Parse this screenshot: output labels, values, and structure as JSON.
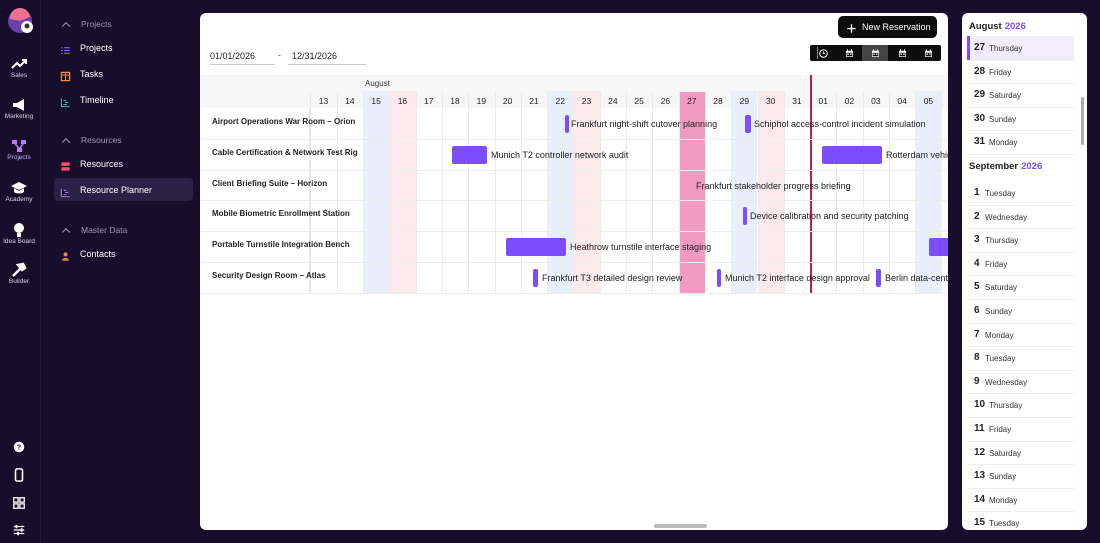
{
  "nav_rail": {
    "items": [
      "Sales",
      "Marketing",
      "Projects",
      "Academy",
      "Idea Board",
      "Builder"
    ]
  },
  "sidebar": {
    "sections": [
      {
        "title": "Projects",
        "items": [
          "Projects",
          "Tasks",
          "Timeline"
        ]
      },
      {
        "title": "Resources",
        "items": [
          "Resources",
          "Resource Planner"
        ]
      },
      {
        "title": "Master Data",
        "items": [
          "Contacts"
        ]
      }
    ]
  },
  "toolbar": {
    "new_reservation": "New Reservation",
    "date_from": "01/01/2026",
    "date_separator": "-",
    "date_to": "12/31/2026"
  },
  "planner": {
    "month": "August",
    "days": [
      "13",
      "14",
      "15",
      "16",
      "17",
      "18",
      "19",
      "20",
      "21",
      "22",
      "23",
      "24",
      "25",
      "26",
      "27",
      "28",
      "29",
      "30",
      "31",
      "01",
      "02",
      "03",
      "04",
      "05"
    ],
    "rows": [
      {
        "name": "Airport Operations War Room – Orion",
        "events": [
          {
            "label": "Frankfurt night-shift cutover planning"
          },
          {
            "label": "Schiphol access-control incident simulation"
          }
        ]
      },
      {
        "name": "Cable Certification & Network Test Rig",
        "events": [
          {
            "label": "Munich T2 controller network audit"
          },
          {
            "label": "Rotterdam vehic"
          }
        ]
      },
      {
        "name": "Client Briefing Suite – Horizon",
        "events": [
          {
            "label": "Frankfurt stakeholder progress briefing"
          }
        ]
      },
      {
        "name": "Mobile Biometric Enrollment Station",
        "events": [
          {
            "label": "Device calibration and security patching"
          }
        ]
      },
      {
        "name": "Portable Turnstile Integration Bench",
        "events": [
          {
            "label": "Heathrow turnstile interface staging"
          }
        ]
      },
      {
        "name": "Security Design Room – Atlas",
        "events": [
          {
            "label": "Frankfurt T3 detailed design review"
          },
          {
            "label": "Munich T2 interface design approval"
          },
          {
            "label": "Berlin data-cent"
          }
        ]
      }
    ]
  },
  "calendar": {
    "months": [
      {
        "name": "August",
        "year": "2026",
        "days": [
          {
            "day": 27,
            "weekday": "Thursday"
          },
          {
            "day": 28,
            "weekday": "Friday"
          },
          {
            "day": 29,
            "weekday": "Saturday"
          },
          {
            "day": 30,
            "weekday": "Sunday"
          },
          {
            "day": 31,
            "weekday": "Monday"
          }
        ]
      },
      {
        "name": "September",
        "year": "2026",
        "days": [
          {
            "day": 1,
            "weekday": "Tuesday"
          },
          {
            "day": 2,
            "weekday": "Wednesday"
          },
          {
            "day": 3,
            "weekday": "Thursday"
          },
          {
            "day": 4,
            "weekday": "Friday"
          },
          {
            "day": 5,
            "weekday": "Saturday"
          },
          {
            "day": 6,
            "weekday": "Sunday"
          },
          {
            "day": 7,
            "weekday": "Monday"
          },
          {
            "day": 8,
            "weekday": "Tuesday"
          },
          {
            "day": 9,
            "weekday": "Wednesday"
          },
          {
            "day": 10,
            "weekday": "Thursday"
          },
          {
            "day": 11,
            "weekday": "Friday"
          },
          {
            "day": 12,
            "weekday": "Saturday"
          },
          {
            "day": 13,
            "weekday": "Sunday"
          },
          {
            "day": 14,
            "weekday": "Monday"
          },
          {
            "day": 15,
            "weekday": "Tuesday"
          }
        ]
      }
    ]
  }
}
